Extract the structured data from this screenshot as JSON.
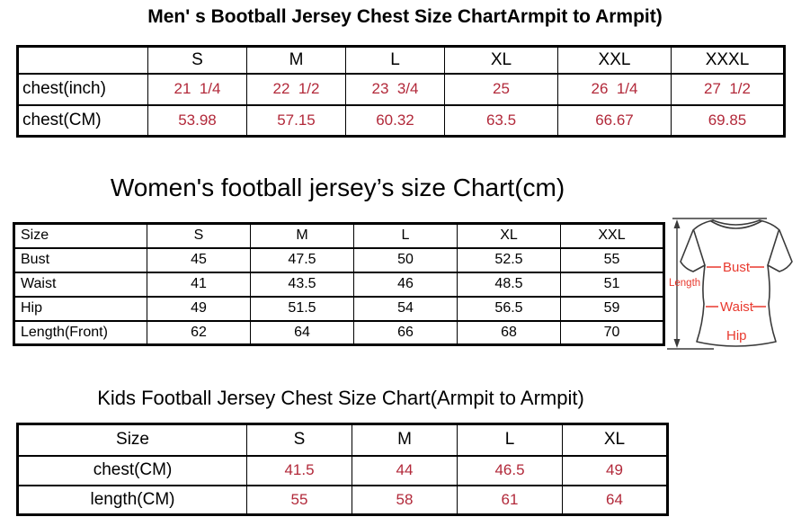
{
  "colors": {
    "table_value_red": "#b2293a",
    "diagram_red": "#e8392e",
    "line_dark": "#3a3a3a",
    "border_black": "#000000",
    "background": "#ffffff"
  },
  "chart_data": [
    {
      "type": "table",
      "title": "Men' s Bootball Jersey Chest Size ChartArmpit to Armpit)",
      "header": [
        "",
        "S",
        "M",
        "L",
        "XL",
        "XXL",
        "XXXL"
      ],
      "value_color": "#b2293a",
      "rows": [
        {
          "label": "chest(inch)",
          "values": [
            "21  1/4",
            "22  1/2",
            "23  3/4",
            "25",
            "26  1/4",
            "27  1/2"
          ]
        },
        {
          "label": "chest(CM)",
          "values": [
            "53.98",
            "57.15",
            "60.32",
            "63.5",
            "66.67",
            "69.85"
          ]
        }
      ]
    },
    {
      "type": "table",
      "title": "Women's football jersey’s size Chart(cm)",
      "header": [
        "Size",
        "S",
        "M",
        "L",
        "XL",
        "XXL"
      ],
      "value_color": "#000000",
      "rows": [
        {
          "label": "Bust",
          "values": [
            "45",
            "47.5",
            "50",
            "52.5",
            "55"
          ]
        },
        {
          "label": "Waist",
          "values": [
            "41",
            "43.5",
            "46",
            "48.5",
            "51"
          ]
        },
        {
          "label": "Hip",
          "values": [
            "49",
            "51.5",
            "54",
            "56.5",
            "59"
          ]
        },
        {
          "label": "Length(Front)",
          "values": [
            "62",
            "64",
            "66",
            "68",
            "70"
          ]
        }
      ]
    },
    {
      "type": "table",
      "title": "Kids Football Jersey Chest Size Chart(Armpit to Armpit)",
      "header": [
        "Size",
        "S",
        "M",
        "L",
        "XL"
      ],
      "value_color": "#b2293a",
      "rows": [
        {
          "label": "chest(CM)",
          "values": [
            "41.5",
            "44",
            "46.5",
            "49"
          ]
        },
        {
          "label": "length(CM)",
          "values": [
            "55",
            "58",
            "61",
            "64"
          ]
        }
      ]
    }
  ],
  "diagram": {
    "labels": {
      "length": "Length",
      "bust": "Bust",
      "waist": "Waist",
      "hip": "Hip"
    }
  }
}
